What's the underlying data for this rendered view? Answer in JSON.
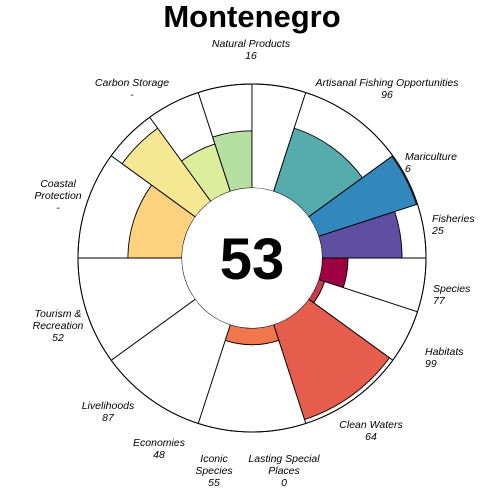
{
  "chart_data": {
    "type": "flower",
    "title": "Montenegro",
    "overall_score": "53",
    "score_range": [
      0,
      100
    ],
    "petals": [
      {
        "name": "Fisheries",
        "lines": [
          "Fisheries"
        ],
        "value": 25,
        "value_label": "25",
        "color": "#9E0142",
        "weight": 1
      },
      {
        "name": "Mariculture",
        "lines": [
          "Mariculture"
        ],
        "value": 6,
        "value_label": "6",
        "color": "#C93A4B",
        "weight": 1
      },
      {
        "name": "Artisanal Fishing Opportunities",
        "lines": [
          "Artisanal Fishing Opportunities"
        ],
        "value": 96,
        "value_label": "96",
        "color": "#E65D4E",
        "weight": 2
      },
      {
        "name": "Natural Products",
        "lines": [
          "Natural Products"
        ],
        "value": 16,
        "value_label": "16",
        "color": "#F0764B",
        "weight": 2
      },
      {
        "name": "Carbon Storage",
        "lines": [
          "Carbon Storage"
        ],
        "value": null,
        "value_label": "-",
        "color": "#FDAE61",
        "weight": 2
      },
      {
        "name": "Coastal Protection",
        "lines": [
          "Coastal",
          "Protection"
        ],
        "value": null,
        "value_label": "-",
        "color": "#FEE08B",
        "weight": 2
      },
      {
        "name": "Tourism & Recreation",
        "lines": [
          "Tourism &",
          "Recreation"
        ],
        "value": 52,
        "value_label": "52",
        "color": "#FDD27E",
        "weight": 2
      },
      {
        "name": "Livelihoods",
        "lines": [
          "Livelihoods"
        ],
        "value": 87,
        "value_label": "87",
        "color": "#F6E892",
        "weight": 1
      },
      {
        "name": "Economies",
        "lines": [
          "Economies"
        ],
        "value": 48,
        "value_label": "48",
        "color": "#DCEE9C",
        "weight": 1
      },
      {
        "name": "Iconic Species",
        "lines": [
          "Iconic",
          "Species"
        ],
        "value": 55,
        "value_label": "55",
        "color": "#B6E0A2",
        "weight": 1
      },
      {
        "name": "Lasting Special Places",
        "lines": [
          "Lasting Special",
          "Places"
        ],
        "value": 0,
        "value_label": "0",
        "color": "#8ACFA5",
        "weight": 1
      },
      {
        "name": "Clean Waters",
        "lines": [
          "Clean Waters"
        ],
        "value": 64,
        "value_label": "64",
        "color": "#56ABAD",
        "weight": 2
      },
      {
        "name": "Habitats",
        "lines": [
          "Habitats"
        ],
        "value": 99,
        "value_label": "99",
        "color": "#3288BD",
        "weight": 1
      },
      {
        "name": "Species",
        "lines": [
          "Species"
        ],
        "value": 77,
        "value_label": "77",
        "color": "#5E4FA2",
        "weight": 1
      }
    ]
  }
}
